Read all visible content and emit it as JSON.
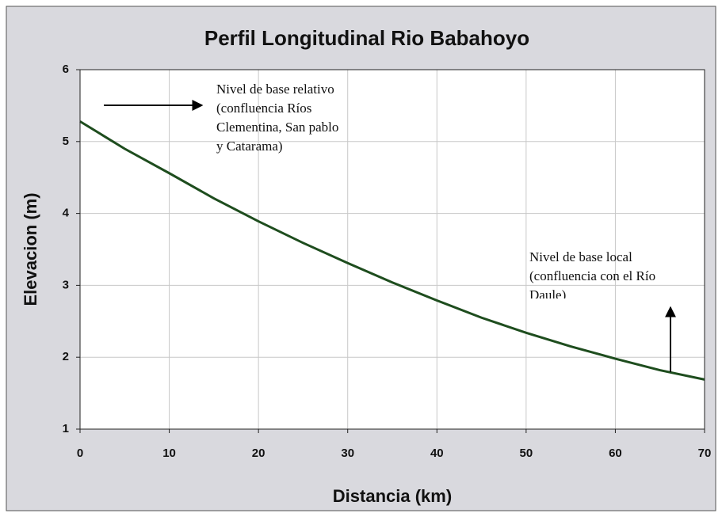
{
  "chart_data": {
    "type": "line",
    "title": "Perfil Longitudinal Rio Babahoyo",
    "xlabel": "Distancia (km)",
    "ylabel": "Elevacion (m)",
    "x": [
      0,
      5,
      10,
      15,
      20,
      25,
      30,
      35,
      40,
      45,
      50,
      55,
      60,
      65,
      70
    ],
    "series": [
      {
        "name": "Perfil",
        "color": "#1e4d1e",
        "values": [
          5.28,
          4.9,
          4.56,
          4.21,
          3.89,
          3.59,
          3.31,
          3.04,
          2.79,
          2.55,
          2.34,
          2.15,
          1.98,
          1.82,
          1.69
        ]
      }
    ],
    "xlim": [
      0,
      70
    ],
    "ylim": [
      1,
      6
    ],
    "xticks": [
      0,
      10,
      20,
      30,
      40,
      50,
      60,
      70
    ],
    "yticks": [
      1,
      2,
      3,
      4,
      5,
      6
    ],
    "grid": true,
    "annotations": [
      {
        "lines": [
          "Nivel de base relativo",
          "(confluencia Ríos",
          "Clementina, San pablo",
          "y Catarama)"
        ]
      },
      {
        "lines": [
          "Nivel de base local",
          "(confluencia con el Río",
          "Daule)"
        ]
      }
    ]
  }
}
